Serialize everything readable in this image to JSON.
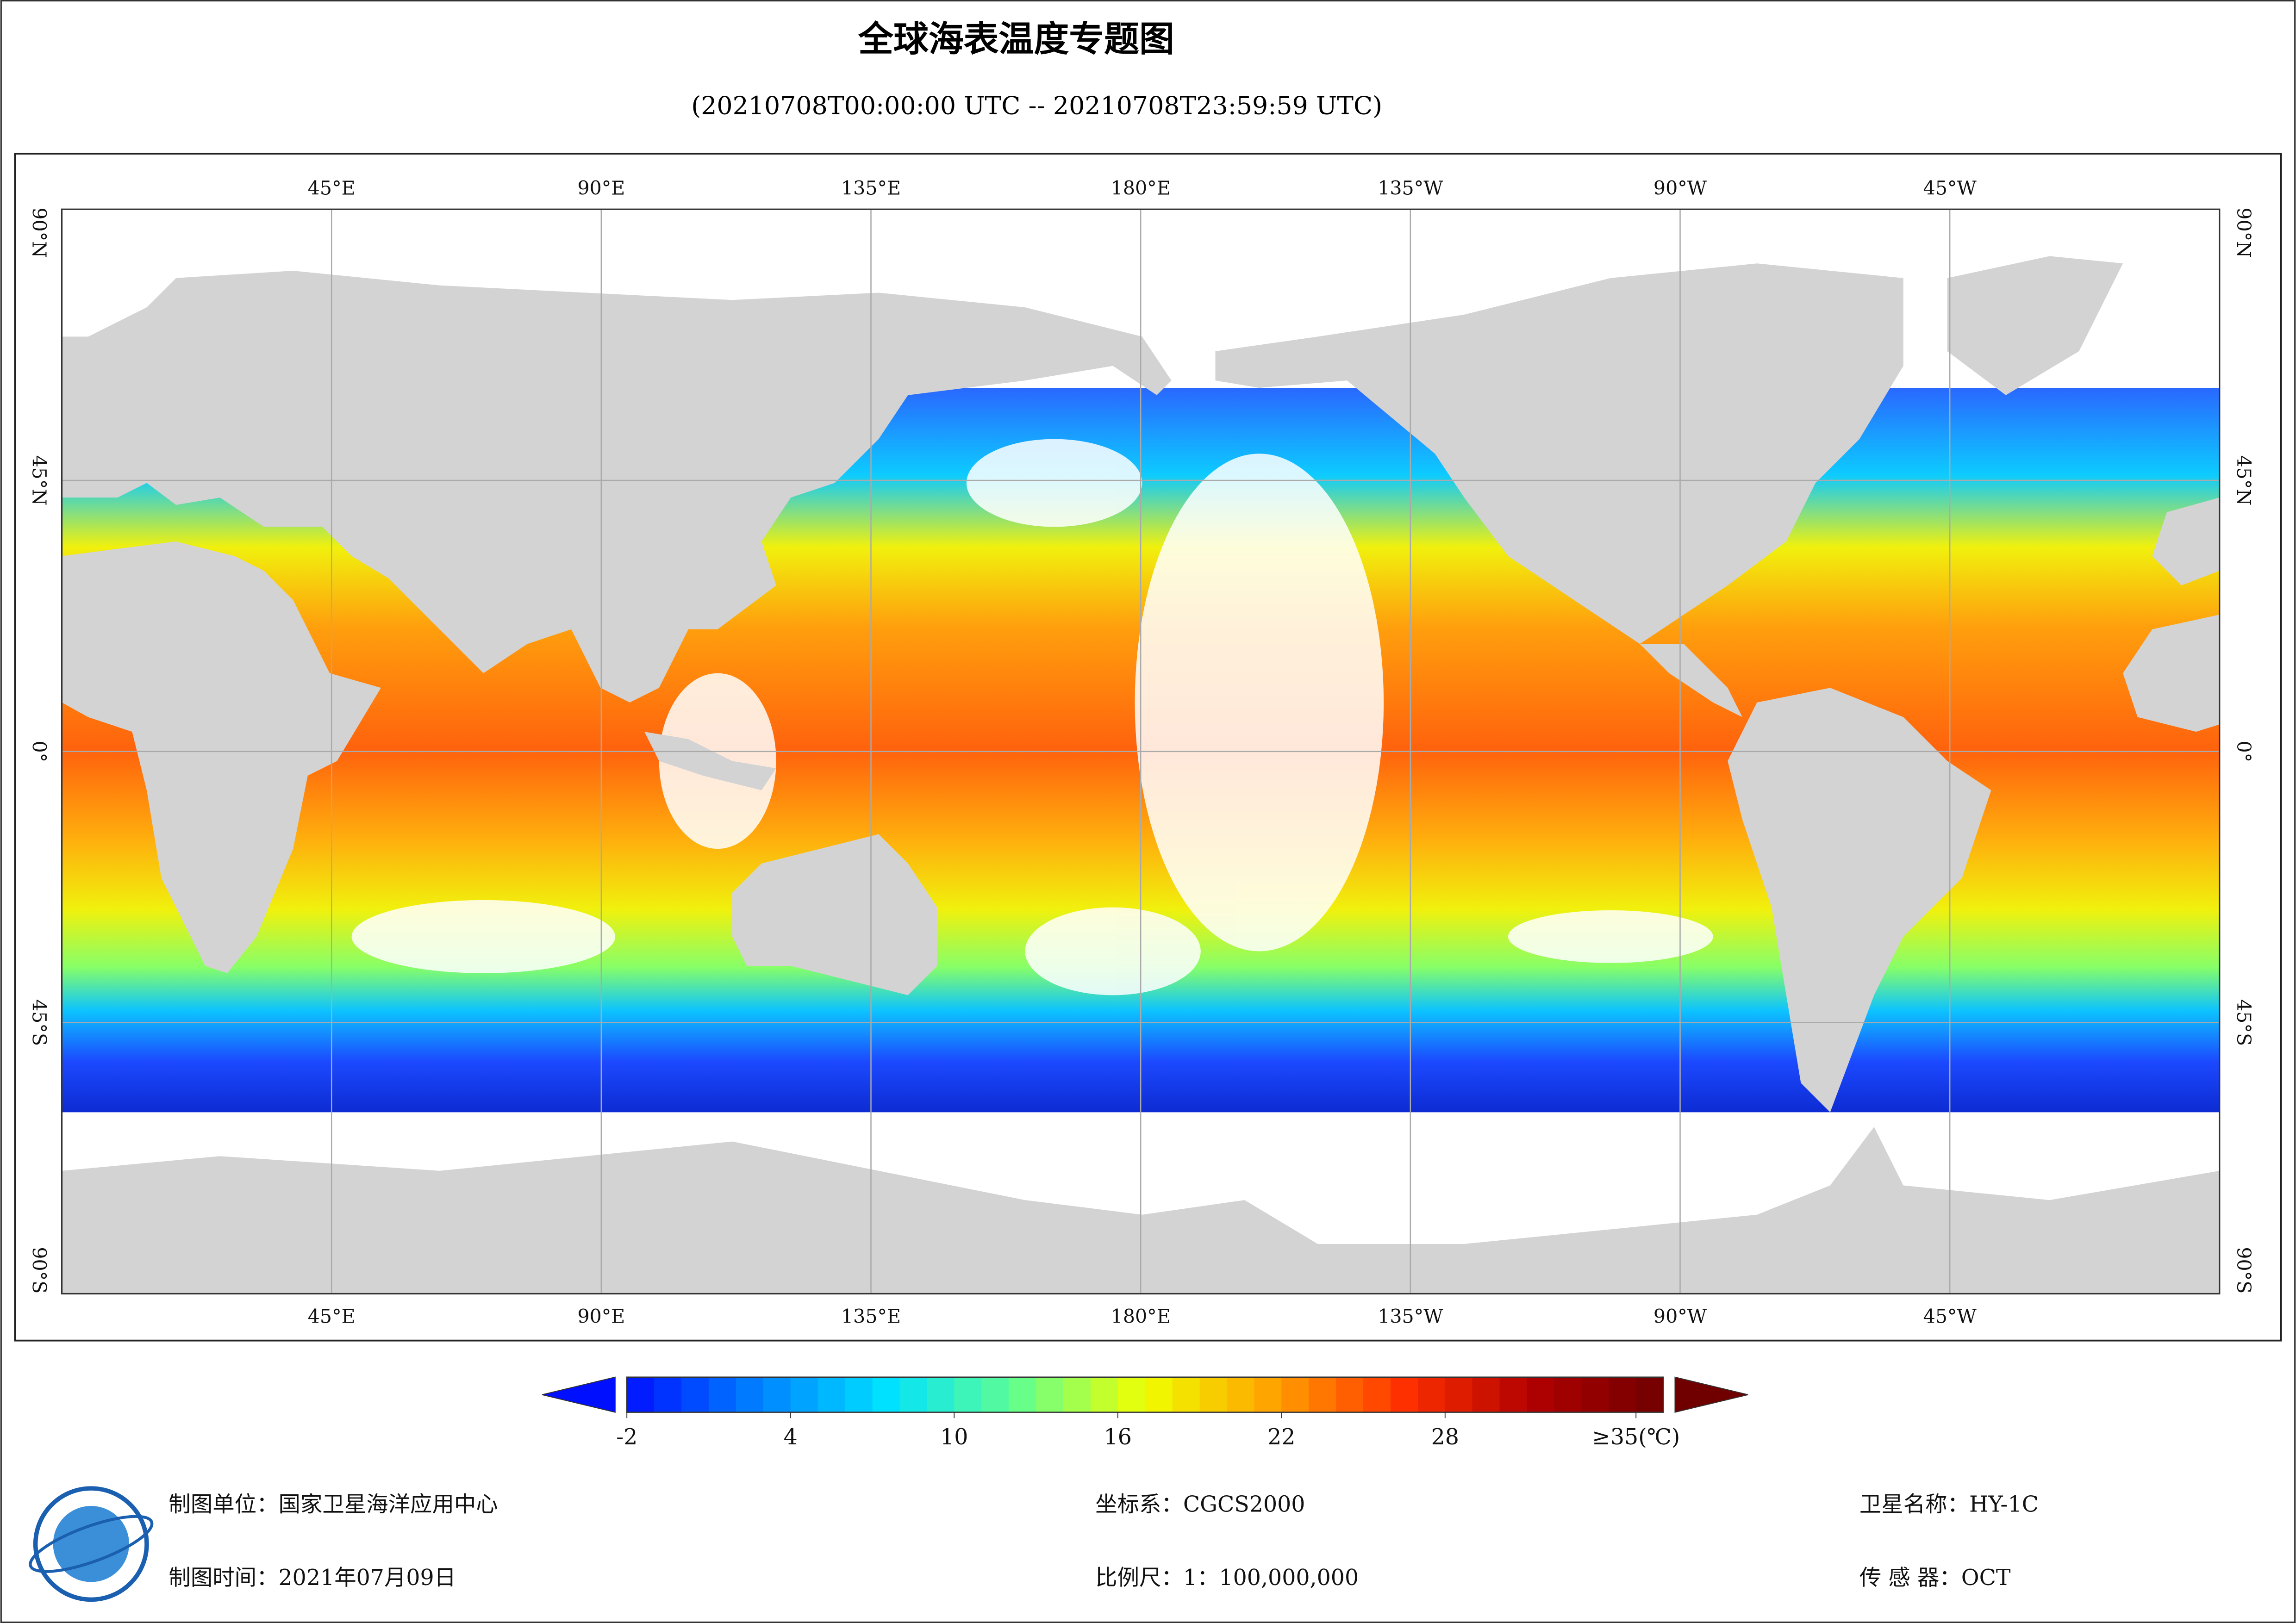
{
  "title": "全球海表温度专题图",
  "subtitle": "(20210708T00:00:00 UTC -- 20210708T23:59:59 UTC)",
  "map": {
    "lon_ticks": [
      {
        "value": 45,
        "label": "45°E"
      },
      {
        "value": 90,
        "label": "90°E"
      },
      {
        "value": 135,
        "label": "135°E"
      },
      {
        "value": 180,
        "label": "180°E"
      },
      {
        "value": 225,
        "label": "135°W"
      },
      {
        "value": 270,
        "label": "90°W"
      },
      {
        "value": 315,
        "label": "45°W"
      }
    ],
    "lat_ticks": [
      {
        "value": 90,
        "label": "90°N"
      },
      {
        "value": 45,
        "label": "45°N"
      },
      {
        "value": 0,
        "label": "0°"
      },
      {
        "value": -45,
        "label": "45°S"
      },
      {
        "value": -90,
        "label": "90°S"
      }
    ]
  },
  "colorbar": {
    "lim": [
      -2,
      36
    ],
    "ticks": [
      -2,
      4,
      10,
      16,
      22,
      28,
      {
        "value": 35,
        "label": "≥35(℃)"
      }
    ],
    "colors": [
      "#0010ff",
      "#0080ff",
      "#00e0ff",
      "#60ff90",
      "#f0ff00",
      "#ffa000",
      "#ff3000",
      "#b00000",
      "#700000"
    ]
  },
  "footer": {
    "unit": "制图单位：国家卫星海洋应用中心",
    "time": "制图时间：2021年07月09日",
    "crs": "坐标系：CGCS2000",
    "scale": "比例尺：1：100,000,000",
    "satellite": "卫星名称：HY-1C",
    "sensor": "传 感 器：OCT"
  }
}
